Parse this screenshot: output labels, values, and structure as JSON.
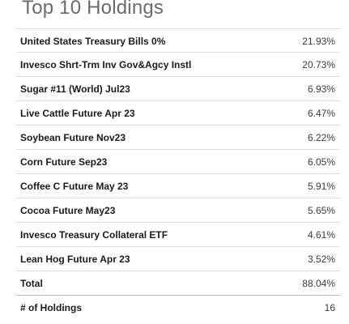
{
  "title": "Top 10 Holdings",
  "holdings": [
    {
      "name": "United States Treasury Bills 0%",
      "value": "21.93%"
    },
    {
      "name": "Invesco Shrt-Trm Inv Gov&Agcy Instl",
      "value": "20.73%"
    },
    {
      "name": "Sugar #11 (World) Jul23",
      "value": "6.93%"
    },
    {
      "name": "Live Cattle Future Apr 23",
      "value": "6.47%"
    },
    {
      "name": "Soybean Future Nov23",
      "value": "6.22%"
    },
    {
      "name": "Corn Future Sep23",
      "value": "6.05%"
    },
    {
      "name": "Coffee C Future May 23",
      "value": "5.91%"
    },
    {
      "name": "Cocoa Future May23",
      "value": "5.65%"
    },
    {
      "name": "Invesco Treasury Collateral ETF",
      "value": "4.61%"
    },
    {
      "name": "Lean Hog Future Apr 23",
      "value": "3.52%"
    }
  ],
  "total": {
    "label": "Total",
    "value": "88.04%"
  },
  "num_holdings": {
    "label": "# of Holdings",
    "value": "16"
  }
}
